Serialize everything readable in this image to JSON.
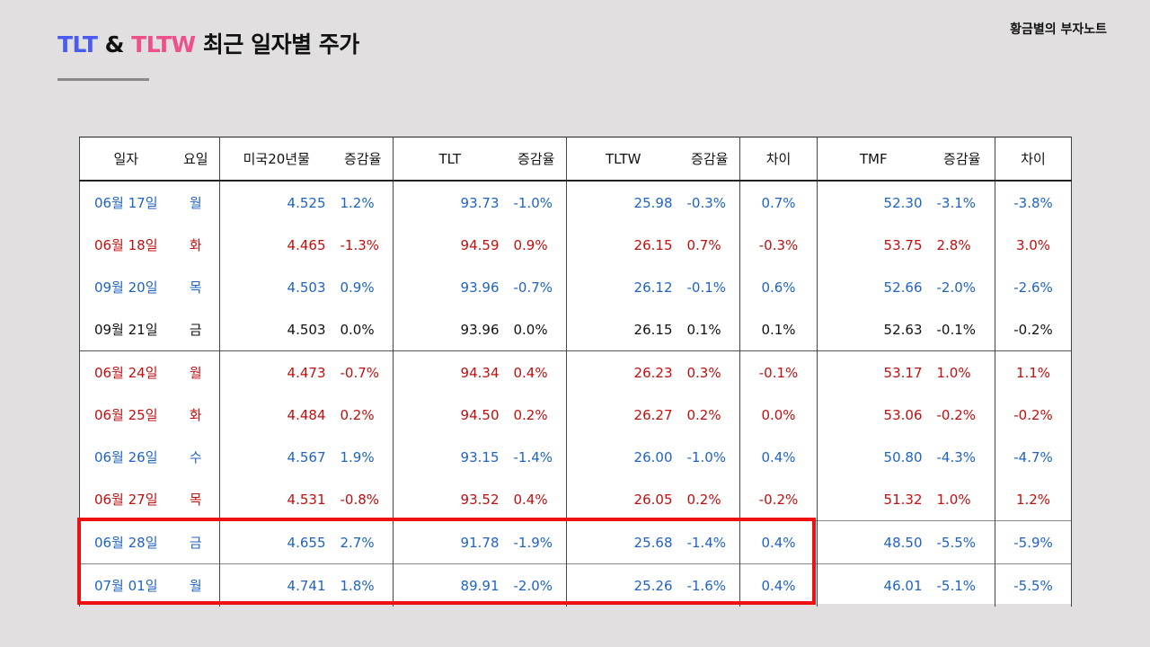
{
  "title": {
    "part1": "TLT",
    "amp": "&",
    "part2": "TLTW",
    "rest": "최근 일자별 주가"
  },
  "brand": "황금별의 부자노트",
  "colors": {
    "tlt": "#4a5cf0",
    "tltw": "#ef4f8b",
    "up": "#c20e0e",
    "down": "#1f63c6",
    "highlight": "#ee1111"
  },
  "headers": [
    "일자",
    "요일",
    "미국20년물",
    "증감율",
    "TLT",
    "증감율",
    "TLTW",
    "증감율",
    "차이",
    "TMF",
    "증감율",
    "차이"
  ],
  "rows": [
    [
      "06월 17일",
      "월",
      "4.525",
      "1.2%",
      "93.73",
      "-1.0%",
      "25.98",
      "-0.3%",
      "0.7%",
      "52.30",
      "-3.1%",
      "-3.8%"
    ],
    [
      "06월 18일",
      "화",
      "4.465",
      "-1.3%",
      "94.59",
      "0.9%",
      "26.15",
      "0.7%",
      "-0.3%",
      "53.75",
      "2.8%",
      "3.0%"
    ],
    [
      "09월 20일",
      "목",
      "4.503",
      "0.9%",
      "93.96",
      "-0.7%",
      "26.12",
      "-0.1%",
      "0.6%",
      "52.66",
      "-2.0%",
      "-2.6%"
    ],
    [
      "09월 21일",
      "금",
      "4.503",
      "0.0%",
      "93.96",
      "0.0%",
      "26.15",
      "0.1%",
      "0.1%",
      "52.63",
      "-0.1%",
      "-0.2%"
    ],
    [
      "06월 24일",
      "월",
      "4.473",
      "-0.7%",
      "94.34",
      "0.4%",
      "26.23",
      "0.3%",
      "-0.1%",
      "53.17",
      "1.0%",
      "1.1%"
    ],
    [
      "06월 25일",
      "화",
      "4.484",
      "0.2%",
      "94.50",
      "0.2%",
      "26.27",
      "0.2%",
      "0.0%",
      "53.06",
      "-0.2%",
      "-0.2%"
    ],
    [
      "06월 26일",
      "수",
      "4.567",
      "1.9%",
      "93.15",
      "-1.4%",
      "26.00",
      "-1.0%",
      "0.4%",
      "50.80",
      "-4.3%",
      "-4.7%"
    ],
    [
      "06월 27일",
      "목",
      "4.531",
      "-0.8%",
      "93.52",
      "0.4%",
      "26.05",
      "0.2%",
      "-0.2%",
      "51.32",
      "1.0%",
      "1.2%"
    ],
    [
      "06월 28일",
      "금",
      "4.655",
      "2.7%",
      "91.78",
      "-1.9%",
      "25.68",
      "-1.4%",
      "0.4%",
      "48.50",
      "-5.5%",
      "-5.9%"
    ],
    [
      "07월 01일",
      "월",
      "4.741",
      "1.8%",
      "89.91",
      "-2.0%",
      "25.26",
      "-1.6%",
      "0.4%",
      "46.01",
      "-5.1%",
      "-5.5%"
    ]
  ]
}
